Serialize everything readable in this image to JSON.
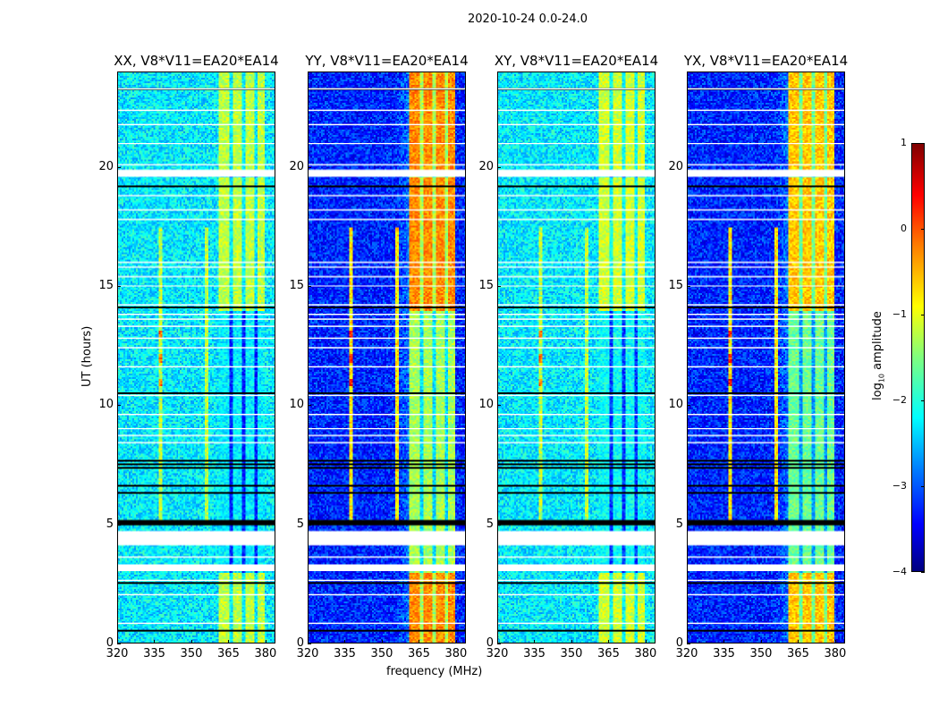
{
  "figure": {
    "title": "2020-10-24 0.0-24.0"
  },
  "axes": {
    "xlabel": "frequency (MHz)",
    "ylabel": "UT (hours)",
    "xticks": [
      "320",
      "335",
      "350",
      "365",
      "380"
    ],
    "yticks": [
      "0",
      "5",
      "10",
      "15",
      "20"
    ]
  },
  "colorbar": {
    "label_log": "log",
    "label_sub": "10",
    "label_rest": " amplitude",
    "ticks": [
      "1",
      "0",
      "−1",
      "−2",
      "−3",
      "−4"
    ],
    "colormap": "jet"
  },
  "chart_data": {
    "type": "heatmap",
    "title": "2020-10-24 0.0-24.0",
    "xlabel": "frequency (MHz)",
    "ylabel": "UT (hours)",
    "xlim": [
      320,
      384
    ],
    "ylim": [
      0,
      24
    ],
    "clim": [
      -4,
      1
    ],
    "xticks": [
      320,
      335,
      350,
      365,
      380
    ],
    "yticks": [
      0,
      5,
      10,
      15,
      20
    ],
    "colorbar_label": "log10 amplitude",
    "panels": [
      {
        "title": "XX, V8*V11=EA20*EA14",
        "background_level": -2.2,
        "band_mhz": [
          361,
          380
        ],
        "band_level": -1.2,
        "rfi_mhz": [
          337,
          356
        ]
      },
      {
        "title": "YY, V8*V11=EA20*EA14",
        "background_level": -3.2,
        "band_mhz": [
          361,
          380
        ],
        "band_level": -0.3,
        "rfi_mhz": [
          337,
          356
        ]
      },
      {
        "title": "XY, V8*V11=EA20*EA14",
        "background_level": -2.2,
        "band_mhz": [
          361,
          380
        ],
        "band_level": -1.1,
        "rfi_mhz": [
          337,
          356
        ]
      },
      {
        "title": "YX, V8*V11=EA20*EA14",
        "background_level": -3.2,
        "band_mhz": [
          361,
          380
        ],
        "band_level": -0.6,
        "rfi_mhz": [
          337,
          356
        ]
      }
    ],
    "blanked_hours": [
      [
        3.0,
        3.3
      ],
      [
        4.1,
        4.7
      ],
      [
        19.6,
        19.9
      ]
    ]
  }
}
